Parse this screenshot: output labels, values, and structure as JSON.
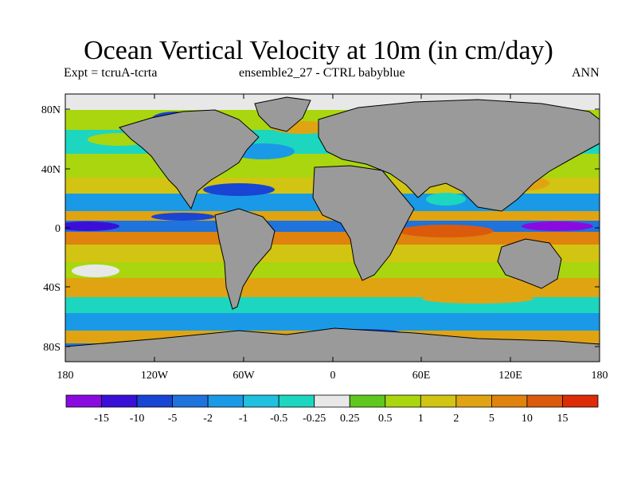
{
  "title": "Ocean Vertical Velocity at 10m (in cm/day)",
  "subtitle_left": "Expt = tcruA-tcrta",
  "subtitle_mid": "ensemble2_27 - CTRL babyblue",
  "subtitle_right": "ANN",
  "lat_labels": [
    "80N",
    "40N",
    "0",
    "40S",
    "80S"
  ],
  "lon_labels": [
    "180",
    "120W",
    "60W",
    "0",
    "60E",
    "120E",
    "180"
  ],
  "colorbar": {
    "colors": [
      "#8a0be0",
      "#3a10d8",
      "#1845d4",
      "#1e73dc",
      "#1a9ae6",
      "#20c0e0",
      "#1dd6c0",
      "#e8e8e8",
      "#5ec81e",
      "#a9d60e",
      "#d2c412",
      "#e0a412",
      "#e0820e",
      "#dc5a0c",
      "#dc2c08"
    ],
    "tick_labels": [
      "-15",
      "-10",
      "-5",
      "-2",
      "-1",
      "-0.5",
      "-0.25",
      "0.25",
      "0.5",
      "1",
      "2",
      "5",
      "10",
      "15"
    ]
  }
}
